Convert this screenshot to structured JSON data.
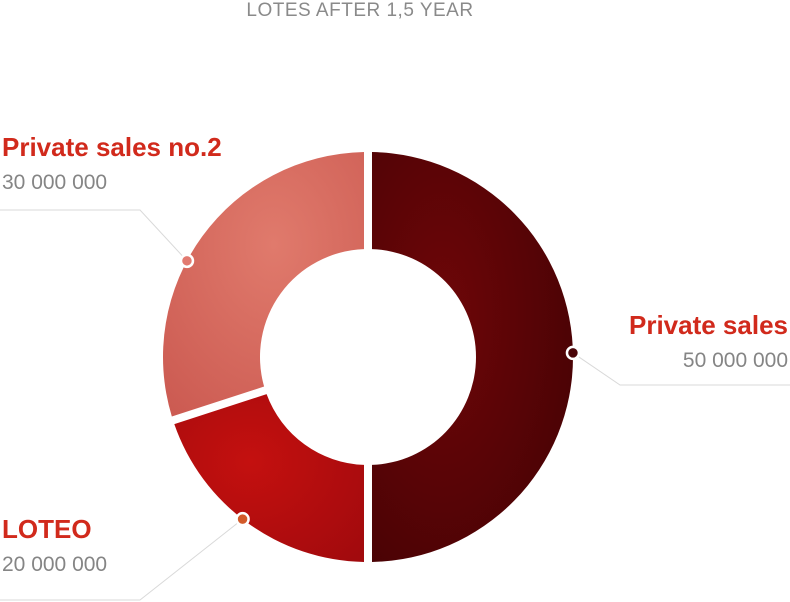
{
  "chart_data": {
    "type": "pie",
    "title": "LOTES AFTER 1,5 YEAR",
    "categories": [
      "Private sales",
      "LOTEO",
      "Private sales no.2"
    ],
    "values": [
      50000000,
      20000000,
      30000000
    ],
    "value_labels": [
      "50 000 000",
      "20 000 000",
      "30 000 000"
    ],
    "colors": [
      "#5a0306",
      "#b20c10",
      "#d8685c"
    ],
    "marker_colors": [
      "#4a0508",
      "#d25a2a",
      "#e27a70"
    ],
    "style": "donut",
    "legend": "callout labels"
  }
}
